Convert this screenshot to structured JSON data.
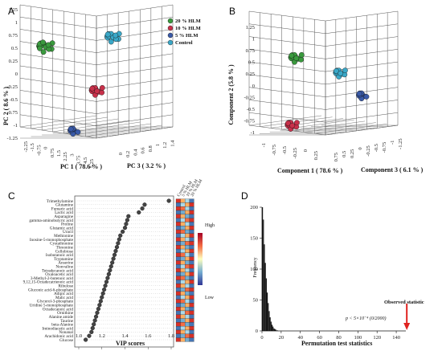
{
  "panels": {
    "a": {
      "letter": "A",
      "ylabel": "PC 2 ( 8.6 % )",
      "xlabel": "PC 1 ( 78.6 % )",
      "zlabel": "PC 3 ( 3.2 % )",
      "y_ticks": [
        "1.25",
        "1",
        "0.75",
        "0.5",
        "0.25",
        "0",
        "-0.25",
        "-0.5",
        "-0.75",
        "-1",
        "-1.25"
      ],
      "x_ticks": [
        "-2.25",
        "-1.5",
        "-0.75",
        "0",
        "0.75",
        "1.5",
        "2.25",
        "3",
        "3.75",
        "4.5",
        "5.25"
      ],
      "z_ticks": [
        "0",
        "0.2",
        "0.4",
        "0.6",
        "0.8",
        "1",
        "1.2",
        "1.4"
      ]
    },
    "b": {
      "letter": "B",
      "ylabel": "Component  2 (5.8 % )",
      "xlabel": "Component 1 ( 78.6 % )",
      "zlabel": "Component 3 ( 6.1 % )",
      "y_ticks": [
        "1.25",
        "1",
        "0.75",
        "0.5",
        "0.25",
        "0",
        "-0.25",
        "-0.5",
        "-0.75",
        "-1"
      ],
      "x_ticks": [
        "-1",
        "-0.75",
        "-0.5",
        "-0.25",
        "0",
        "0.25"
      ],
      "z_ticks": [
        "0.75",
        "0.5",
        "0.25",
        "0",
        "-0.25",
        "-0.5",
        "-0.75",
        "-1",
        "-1.25"
      ]
    },
    "c": {
      "letter": "C",
      "xlabel": "VIP scores",
      "heat_high": "High",
      "heat_low": "Low"
    },
    "d": {
      "letter": "D",
      "xlabel": "Permutation test statistics",
      "ylabel": "Frequency",
      "annotation_title": "Observed statistic",
      "annotation_p": "p < 5×10⁻⁴ (0/2000)"
    }
  },
  "legend": [
    {
      "label": "20 % HLM",
      "color": "#3a9a3e"
    },
    {
      "label": "10 % HLM",
      "color": "#c8304a"
    },
    {
      "label": "5 % HLM",
      "color": "#3a5aa8"
    },
    {
      "label": "Control",
      "color": "#3aa8c8"
    }
  ],
  "colors": {
    "grid": "#555555",
    "arrow": "#e0221f",
    "bar": "#111111",
    "dot": "#444444"
  },
  "chart_data": [
    {
      "type": "scatter",
      "panel": "A",
      "xlabel": "PC 1 ( 78.6 % )",
      "ylabel": "PC 2 ( 8.6 % )",
      "zlabel": "PC 3 ( 3.2 % )",
      "series": [
        {
          "name": "20 % HLM",
          "centroid": {
            "x": -2.0,
            "y": 0.75,
            "z": 0.3
          }
        },
        {
          "name": "10 % HLM",
          "centroid": {
            "x": 1.5,
            "y": -0.35,
            "z": 0.5
          }
        },
        {
          "name": "5 % HLM",
          "centroid": {
            "x": 0.9,
            "y": -1.1,
            "z": 0.9
          }
        },
        {
          "name": "Control",
          "centroid": {
            "x": 4.3,
            "y": 0.85,
            "z": 1.2
          }
        }
      ]
    },
    {
      "type": "scatter",
      "panel": "B",
      "xlabel": "Component 1 ( 78.6 % )",
      "ylabel": "Component  2 (5.8 % )",
      "zlabel": "Component 3 ( 6.1 % )",
      "series": [
        {
          "name": "20 % HLM",
          "centroid": {
            "x": -0.7,
            "y": 0.7,
            "z": 0.5
          }
        },
        {
          "name": "10 % HLM",
          "centroid": {
            "x": -0.8,
            "y": -0.65,
            "z": 0.0
          }
        },
        {
          "name": "5 % HLM",
          "centroid": {
            "x": 0.1,
            "y": -0.15,
            "z": -0.8
          }
        },
        {
          "name": "Control",
          "centroid": {
            "x": -0.1,
            "y": 0.3,
            "z": -0.5
          }
        }
      ]
    },
    {
      "type": "scatter",
      "panel": "C",
      "xlabel": "VIP scores",
      "xlim": [
        1.0,
        1.8
      ],
      "x_ticks": [
        "1.0",
        "1.2",
        "1.4",
        "1.6",
        "1.8"
      ],
      "heatmap_columns": [
        "Control",
        "5 % HLM",
        "10 % HLM",
        "20 % HLM"
      ],
      "metabolites": [
        {
          "name": "Trimethylamine",
          "vip": 1.78,
          "heat": [
            "#d73027",
            "#fdae61",
            "#abd9e9",
            "#4575b4"
          ]
        },
        {
          "name": "Glutamine",
          "vip": 1.57,
          "heat": [
            "#4575b4",
            "#abd9e9",
            "#fdae61",
            "#d73027"
          ]
        },
        {
          "name": "Fumaric acid",
          "vip": 1.55,
          "heat": [
            "#d73027",
            "#f46d43",
            "#abd9e9",
            "#4575b4"
          ]
        },
        {
          "name": "Lactic acid",
          "vip": 1.52,
          "heat": [
            "#4575b4",
            "#74add1",
            "#fdae61",
            "#d73027"
          ]
        },
        {
          "name": "Asparagine",
          "vip": 1.43,
          "heat": [
            "#d73027",
            "#fdae61",
            "#74add1",
            "#4575b4"
          ]
        },
        {
          "name": "gamma-aminobutyric acid",
          "vip": 1.42,
          "heat": [
            "#4575b4",
            "#abd9e9",
            "#f46d43",
            "#d73027"
          ]
        },
        {
          "name": "Proline",
          "vip": 1.41,
          "heat": [
            "#d73027",
            "#fdae61",
            "#abd9e9",
            "#4575b4"
          ]
        },
        {
          "name": "Glutamic acid",
          "vip": 1.4,
          "heat": [
            "#4575b4",
            "#74add1",
            "#fdae61",
            "#d73027"
          ]
        },
        {
          "name": "Uracil",
          "vip": 1.38,
          "heat": [
            "#d73027",
            "#f46d43",
            "#74add1",
            "#4575b4"
          ]
        },
        {
          "name": "Methionine",
          "vip": 1.36,
          "heat": [
            "#4575b4",
            "#abd9e9",
            "#fdae61",
            "#d73027"
          ]
        },
        {
          "name": "Inosine-5-monophosphate",
          "vip": 1.35,
          "heat": [
            "#d73027",
            "#fdae61",
            "#abd9e9",
            "#4575b4"
          ]
        },
        {
          "name": "Cystathionine",
          "vip": 1.34,
          "heat": [
            "#4575b4",
            "#74add1",
            "#f46d43",
            "#d73027"
          ]
        },
        {
          "name": "Threonine",
          "vip": 1.33,
          "heat": [
            "#d73027",
            "#fdae61",
            "#74add1",
            "#4575b4"
          ]
        },
        {
          "name": "Cellobiose",
          "vip": 1.32,
          "heat": [
            "#4575b4",
            "#abd9e9",
            "#fdae61",
            "#d73027"
          ]
        },
        {
          "name": "Isobutanoic acid",
          "vip": 1.31,
          "heat": [
            "#d73027",
            "#f46d43",
            "#abd9e9",
            "#4575b4"
          ]
        },
        {
          "name": "Tryptamine",
          "vip": 1.3,
          "heat": [
            "#4575b4",
            "#74add1",
            "#fdae61",
            "#d73027"
          ]
        },
        {
          "name": "Anserine",
          "vip": 1.29,
          "heat": [
            "#d73027",
            "#fdae61",
            "#74add1",
            "#4575b4"
          ]
        },
        {
          "name": "Nonvaline",
          "vip": 1.28,
          "heat": [
            "#4575b4",
            "#abd9e9",
            "#f46d43",
            "#d73027"
          ]
        },
        {
          "name": "Tetradecanoic acid",
          "vip": 1.27,
          "heat": [
            "#d73027",
            "#fdae61",
            "#abd9e9",
            "#4575b4"
          ]
        },
        {
          "name": "Oxaloacetic acid",
          "vip": 1.26,
          "heat": [
            "#4575b4",
            "#74add1",
            "#fdae61",
            "#d73027"
          ]
        },
        {
          "name": "3-Methyl-2-butenoic acid",
          "vip": 1.25,
          "heat": [
            "#d73027",
            "#f46d43",
            "#74add1",
            "#4575b4"
          ]
        },
        {
          "name": "9,12,15-Octadecatrienoic acid",
          "vip": 1.24,
          "heat": [
            "#4575b4",
            "#abd9e9",
            "#fdae61",
            "#d73027"
          ]
        },
        {
          "name": "Ribulose",
          "vip": 1.23,
          "heat": [
            "#d73027",
            "#fdae61",
            "#abd9e9",
            "#4575b4"
          ]
        },
        {
          "name": "Gluconic acid-6-phosphate",
          "vip": 1.22,
          "heat": [
            "#4575b4",
            "#74add1",
            "#f46d43",
            "#d73027"
          ]
        },
        {
          "name": "Adipic acid",
          "vip": 1.21,
          "heat": [
            "#d73027",
            "#fdae61",
            "#74add1",
            "#4575b4"
          ]
        },
        {
          "name": "Malic acid",
          "vip": 1.2,
          "heat": [
            "#4575b4",
            "#abd9e9",
            "#fdae61",
            "#d73027"
          ]
        },
        {
          "name": "Glycerol-3-phosphate",
          "vip": 1.19,
          "heat": [
            "#d73027",
            "#f46d43",
            "#abd9e9",
            "#4575b4"
          ]
        },
        {
          "name": "Uridine 5-monophosphate",
          "vip": 1.18,
          "heat": [
            "#4575b4",
            "#74add1",
            "#fdae61",
            "#d73027"
          ]
        },
        {
          "name": "Octadecanoic acid",
          "vip": 1.17,
          "heat": [
            "#d73027",
            "#fdae61",
            "#74add1",
            "#4575b4"
          ]
        },
        {
          "name": "Ornithine",
          "vip": 1.16,
          "heat": [
            "#4575b4",
            "#abd9e9",
            "#f46d43",
            "#d73027"
          ]
        },
        {
          "name": "Alanine amide",
          "vip": 1.15,
          "heat": [
            "#d73027",
            "#fdae61",
            "#abd9e9",
            "#4575b4"
          ]
        },
        {
          "name": "Taurine",
          "vip": 1.14,
          "heat": [
            "#4575b4",
            "#74add1",
            "#fdae61",
            "#d73027"
          ]
        },
        {
          "name": "beta-Alanine",
          "vip": 1.13,
          "heat": [
            "#d73027",
            "#f46d43",
            "#74add1",
            "#4575b4"
          ]
        },
        {
          "name": "Iminodiacetic acid",
          "vip": 1.12,
          "heat": [
            "#4575b4",
            "#abd9e9",
            "#fdae61",
            "#d73027"
          ]
        },
        {
          "name": "Nonanal",
          "vip": 1.11,
          "heat": [
            "#d73027",
            "#fdae61",
            "#abd9e9",
            "#4575b4"
          ]
        },
        {
          "name": "Arachidonic acid",
          "vip": 1.09,
          "heat": [
            "#4575b4",
            "#74add1",
            "#f46d43",
            "#d73027"
          ]
        },
        {
          "name": "Glucose",
          "vip": 1.06,
          "heat": [
            "#d73027",
            "#fdae61",
            "#74add1",
            "#4575b4"
          ]
        }
      ]
    },
    {
      "type": "bar",
      "panel": "D",
      "xlabel": "Permutation test statistics",
      "ylabel": "Frequency",
      "xlim": [
        0,
        150
      ],
      "ylim": [
        0,
        200
      ],
      "x_ticks": [
        "0",
        "20",
        "40",
        "60",
        "80",
        "100",
        "120",
        "140"
      ],
      "y_ticks": [
        "0",
        "50",
        "100",
        "150",
        "200"
      ],
      "bins": [
        {
          "x": 0.5,
          "value": 200
        },
        {
          "x": 1.5,
          "value": 180
        },
        {
          "x": 2.5,
          "value": 140
        },
        {
          "x": 3.5,
          "value": 110
        },
        {
          "x": 4.5,
          "value": 85
        },
        {
          "x": 5.5,
          "value": 62
        },
        {
          "x": 6.5,
          "value": 45
        },
        {
          "x": 7.5,
          "value": 32
        },
        {
          "x": 8.5,
          "value": 22
        },
        {
          "x": 9.5,
          "value": 15
        },
        {
          "x": 10.5,
          "value": 10
        },
        {
          "x": 11.5,
          "value": 7
        },
        {
          "x": 12.5,
          "value": 4
        },
        {
          "x": 13.5,
          "value": 3
        },
        {
          "x": 14.5,
          "value": 2
        },
        {
          "x": 16,
          "value": 1
        }
      ],
      "observed_statistic_x": 151
    }
  ]
}
